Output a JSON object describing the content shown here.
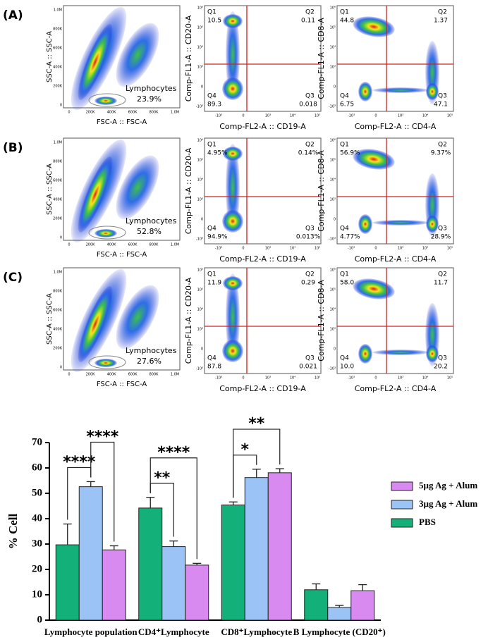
{
  "panels": [
    {
      "label": "(A)",
      "scatter": {
        "x_label": "FSC-A :: FSC-A",
        "y_label": "SSC-A :: SSC-A",
        "gate_label": "Lymphocytes",
        "gate_value": "23.9%"
      },
      "cd20": {
        "x_label": "Comp-FL2-A :: CD19-A",
        "y_label": "Comp-FL1-A :: CD20-A",
        "quadrants": [
          {
            "name": "Q1",
            "value": "10.5"
          },
          {
            "name": "Q2",
            "value": "0.11"
          },
          {
            "name": "Q4",
            "value": "89.3"
          },
          {
            "name": "Q3",
            "value": "0.018"
          }
        ]
      },
      "cd8": {
        "x_label": "Comp-FL2-A :: CD4-A",
        "y_label": "Comp-FL1-A :: CD8-A",
        "quadrants": [
          {
            "name": "Q1",
            "value": "44.8"
          },
          {
            "name": "Q2",
            "value": "1.37"
          },
          {
            "name": "Q4",
            "value": "6.75"
          },
          {
            "name": "Q3",
            "value": "47.1"
          }
        ]
      }
    },
    {
      "label": "(B)",
      "scatter": {
        "x_label": "FSC-A :: FSC-A",
        "y_label": "SSC-A :: SSC-A",
        "gate_label": "Lymphocytes",
        "gate_value": "52.8%"
      },
      "cd20": {
        "x_label": "Comp-FL2-A :: CD19-A",
        "y_label": "Comp-FL1-A :: CD20-A",
        "quadrants": [
          {
            "name": "Q1",
            "value": "4.95%"
          },
          {
            "name": "Q2",
            "value": "0.14%"
          },
          {
            "name": "Q4",
            "value": "94.9%"
          },
          {
            "name": "Q3",
            "value": "0.013%"
          }
        ]
      },
      "cd8": {
        "x_label": "Comp-FL2-A :: CD4-A",
        "y_label": "Comp-FL1-A :: CD8-A",
        "quadrants": [
          {
            "name": "Q1",
            "value": "56.9%"
          },
          {
            "name": "Q2",
            "value": "9.37%"
          },
          {
            "name": "Q4",
            "value": "4.77%"
          },
          {
            "name": "Q3",
            "value": "28.9%"
          }
        ]
      }
    },
    {
      "label": "(C)",
      "scatter": {
        "x_label": "FSC-A :: FSC-A",
        "y_label": "SSC-A :: SSC-A",
        "gate_label": "Lymphocytes",
        "gate_value": "27.6%"
      },
      "cd20": {
        "x_label": "Comp-FL2-A :: CD19-A",
        "y_label": "Comp-FL1-A :: CD20-A",
        "quadrants": [
          {
            "name": "Q1",
            "value": "11.9"
          },
          {
            "name": "Q2",
            "value": "0.29"
          },
          {
            "name": "Q4",
            "value": "87.8"
          },
          {
            "name": "Q3",
            "value": "0.021"
          }
        ]
      },
      "cd8": {
        "x_label": "Comp-FL2-A :: CD4-A",
        "y_label": "Comp-FL1-A :: CD8-A",
        "quadrants": [
          {
            "name": "Q1",
            "value": "58.0"
          },
          {
            "name": "Q2",
            "value": "11.7"
          },
          {
            "name": "Q4",
            "value": "10.0"
          },
          {
            "name": "Q3",
            "value": "20.2"
          }
        ]
      }
    }
  ],
  "flow_axes": {
    "linear_ticks": [
      "0",
      "200K",
      "400K",
      "600K",
      "800K",
      "1.0M"
    ],
    "log_y_ticks": [
      "10⁶",
      "10⁵",
      "10⁴",
      "10³",
      "0",
      "-10³"
    ],
    "log_x_ticks": [
      "-10³",
      "0",
      "10³",
      "10⁴",
      "10⁵"
    ]
  },
  "chart_data": {
    "type": "bar",
    "y_label": "% Cell",
    "categories": [
      "Lymphocyte population",
      "CD4⁺Lymphocyte",
      "CD8⁺Lymphocyte",
      "B Lymphocyte (CD20⁺)"
    ],
    "series": [
      {
        "name": "PBS",
        "color": "#14b07a",
        "values": [
          29.7,
          44.2,
          45.4,
          12
        ],
        "errors": [
          8.2,
          4.2,
          1.2,
          2.3
        ]
      },
      {
        "name": "3µg Ag + Alum",
        "color": "#9cc3f5",
        "values": [
          52.6,
          29,
          56.2,
          5
        ],
        "errors": [
          2,
          2.2,
          3.3,
          0.8
        ]
      },
      {
        "name": "5µg Ag + Alum",
        "color": "#d98af0",
        "values": [
          27.7,
          21.7,
          58.1,
          11.6
        ],
        "errors": [
          1.6,
          0.7,
          1.6,
          2.4
        ]
      }
    ],
    "ylim": [
      0,
      70
    ],
    "yticks": [
      0,
      10,
      20,
      30,
      40,
      50,
      60,
      70
    ],
    "significance": [
      {
        "text": "****",
        "category": 0,
        "series": [
          0,
          1
        ]
      },
      {
        "text": "****",
        "category": 0,
        "series": [
          1,
          2
        ]
      },
      {
        "text": "**",
        "category": 1,
        "series": [
          0,
          1
        ]
      },
      {
        "text": "****",
        "category": 1,
        "series": [
          0,
          2
        ]
      },
      {
        "text": "*",
        "category": 2,
        "series": [
          0,
          1
        ]
      },
      {
        "text": "**",
        "category": 2,
        "series": [
          0,
          2
        ]
      }
    ]
  }
}
